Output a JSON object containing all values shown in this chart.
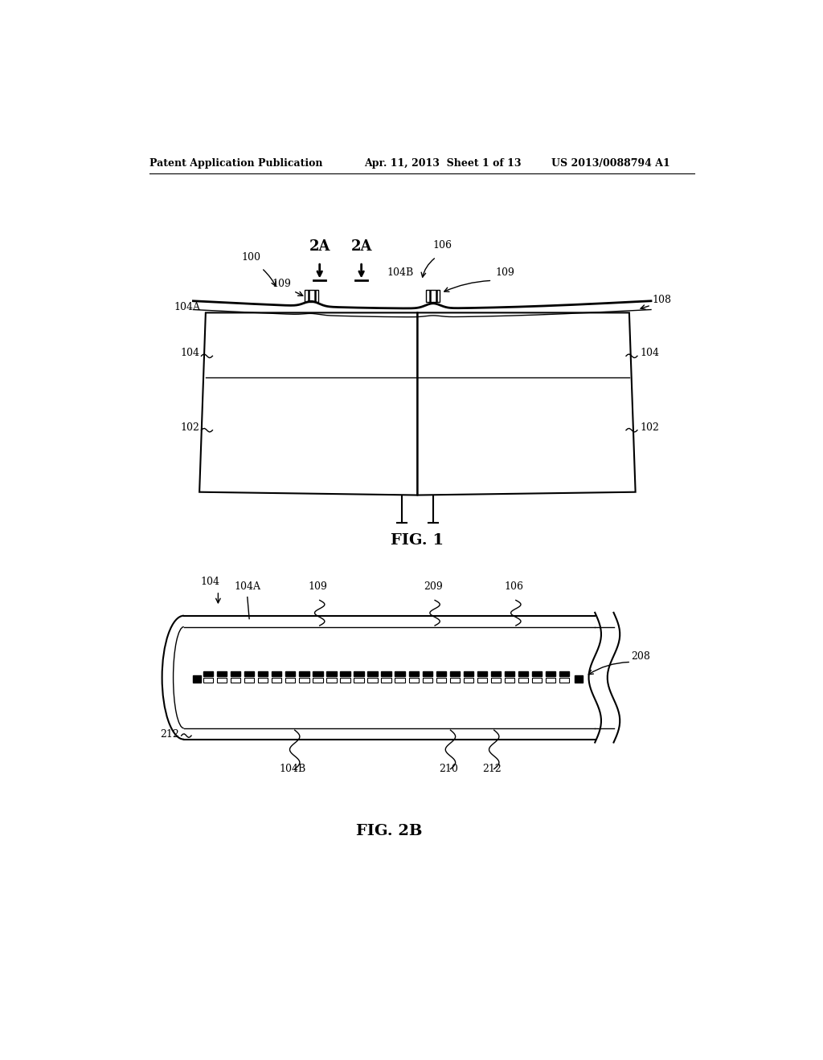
{
  "bg_color": "#ffffff",
  "header_left": "Patent Application Publication",
  "header_mid": "Apr. 11, 2013  Sheet 1 of 13",
  "header_right": "US 2013/0088794 A1",
  "fig1_label": "FIG. 1",
  "fig2b_label": "FIG. 2B",
  "line_color": "#000000"
}
